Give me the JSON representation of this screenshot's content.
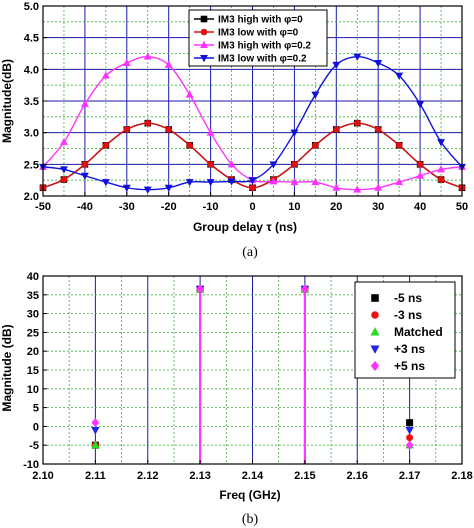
{
  "chart_data": [
    {
      "type": "line",
      "panel_label": "(a)",
      "xlabel": "Group delay τ (ns)",
      "ylabel": "Magnitude(dB)",
      "xlim": [
        -50,
        50
      ],
      "ylim": [
        2.0,
        5.0
      ],
      "xticks": [
        -50,
        -40,
        -30,
        -20,
        -10,
        0,
        10,
        20,
        30,
        40,
        50
      ],
      "xtick_labels": [
        "-50",
        "-40",
        "-30",
        "-20",
        "-10",
        "0",
        "10",
        "20",
        "30",
        "40",
        "50"
      ],
      "yticks": [
        2.0,
        2.5,
        3.0,
        3.5,
        4.0,
        4.5,
        5.0
      ],
      "ytick_labels": [
        "2.0",
        "2.5",
        "3.0",
        "3.5",
        "4.0",
        "4.5",
        "5.0"
      ],
      "grid": true,
      "legend_position": "top-right",
      "series": [
        {
          "name": "IM3 high with φ=0",
          "color": "#000000",
          "marker": "square",
          "x": [
            -50,
            -45,
            -40,
            -35,
            -30,
            -25,
            -20,
            -15,
            -10,
            -5,
            0,
            5,
            10,
            15,
            20,
            25,
            30,
            35,
            40,
            45,
            50
          ],
          "y": [
            2.13,
            2.26,
            2.5,
            2.8,
            3.05,
            3.15,
            3.05,
            2.8,
            2.5,
            2.26,
            2.13,
            2.26,
            2.5,
            2.8,
            3.05,
            3.15,
            3.05,
            2.8,
            2.5,
            2.26,
            2.13
          ]
        },
        {
          "name": "IM3 low with φ=0",
          "color": "#dd1111",
          "marker": "circle",
          "x": [
            -50,
            -45,
            -40,
            -35,
            -30,
            -25,
            -20,
            -15,
            -10,
            -5,
            0,
            5,
            10,
            15,
            20,
            25,
            30,
            35,
            40,
            45,
            50
          ],
          "y": [
            2.13,
            2.26,
            2.5,
            2.8,
            3.05,
            3.15,
            3.05,
            2.8,
            2.5,
            2.26,
            2.13,
            2.26,
            2.5,
            2.8,
            3.05,
            3.15,
            3.05,
            2.8,
            2.5,
            2.26,
            2.13
          ]
        },
        {
          "name": "IM3 high with φ=0.2",
          "color": "#ff33ff",
          "marker": "triangle-up",
          "x": [
            -50,
            -45,
            -40,
            -35,
            -30,
            -25,
            -20,
            -15,
            -10,
            -5,
            0,
            5,
            10,
            15,
            20,
            25,
            30,
            35,
            40,
            45,
            50
          ],
          "y": [
            2.46,
            2.85,
            3.45,
            3.9,
            4.1,
            4.2,
            4.07,
            3.6,
            3.0,
            2.5,
            2.25,
            2.23,
            2.22,
            2.22,
            2.13,
            2.1,
            2.13,
            2.22,
            2.32,
            2.42,
            2.46
          ]
        },
        {
          "name": "IM3 low with φ=0.2",
          "color": "#1111dd",
          "marker": "triangle-down",
          "x": [
            -50,
            -45,
            -40,
            -35,
            -30,
            -25,
            -20,
            -15,
            -10,
            -5,
            0,
            5,
            10,
            15,
            20,
            25,
            30,
            35,
            40,
            45,
            50
          ],
          "y": [
            2.46,
            2.42,
            2.32,
            2.22,
            2.13,
            2.1,
            2.13,
            2.22,
            2.22,
            2.23,
            2.25,
            2.5,
            3.0,
            3.6,
            4.07,
            4.2,
            4.1,
            3.9,
            3.45,
            2.85,
            2.46
          ]
        }
      ]
    },
    {
      "type": "scatter",
      "panel_label": "(b)",
      "xlabel": "Freq (GHz)",
      "ylabel": "Magnitude (dB)",
      "xlim": [
        2.1,
        2.18
      ],
      "ylim": [
        -10,
        40
      ],
      "xticks": [
        2.1,
        2.11,
        2.12,
        2.13,
        2.14,
        2.15,
        2.16,
        2.17,
        2.18
      ],
      "xtick_labels": [
        "2.10",
        "2.11",
        "2.12",
        "2.13",
        "2.14",
        "2.15",
        "2.16",
        "2.17",
        "2.18"
      ],
      "yticks": [
        -10,
        -5,
        0,
        5,
        10,
        15,
        20,
        25,
        30,
        35,
        40
      ],
      "ytick_labels": [
        "-10",
        "-5",
        "0",
        "5",
        "10",
        "15",
        "20",
        "25",
        "30",
        "35",
        "40"
      ],
      "grid": true,
      "legend_position": "right",
      "stems": [
        2.13,
        2.15
      ],
      "series": [
        {
          "name": "-5 ns",
          "color": "#000000",
          "marker": "square",
          "x": [
            2.11,
            2.13,
            2.15,
            2.17
          ],
          "y": [
            -5,
            36.5,
            36.5,
            1
          ]
        },
        {
          "name": "-3 ns",
          "color": "#ee1111",
          "marker": "circle",
          "x": [
            2.11,
            2.13,
            2.15,
            2.17
          ],
          "y": [
            -5,
            36.5,
            36.5,
            -3
          ]
        },
        {
          "name": "Matched",
          "color": "#22dd22",
          "marker": "triangle-up",
          "x": [
            2.11,
            2.13,
            2.15,
            2.17
          ],
          "y": [
            -5,
            36.5,
            36.5,
            -5
          ]
        },
        {
          "name": "+3 ns",
          "color": "#2222ee",
          "marker": "triangle-down",
          "x": [
            2.11,
            2.13,
            2.15,
            2.17
          ],
          "y": [
            -1,
            36.5,
            36.5,
            -1
          ]
        },
        {
          "name": "+5 ns",
          "color": "#ff33ff",
          "marker": "diamond",
          "x": [
            2.11,
            2.13,
            2.15,
            2.17
          ],
          "y": [
            1,
            36.5,
            36.5,
            -5
          ]
        }
      ]
    }
  ]
}
